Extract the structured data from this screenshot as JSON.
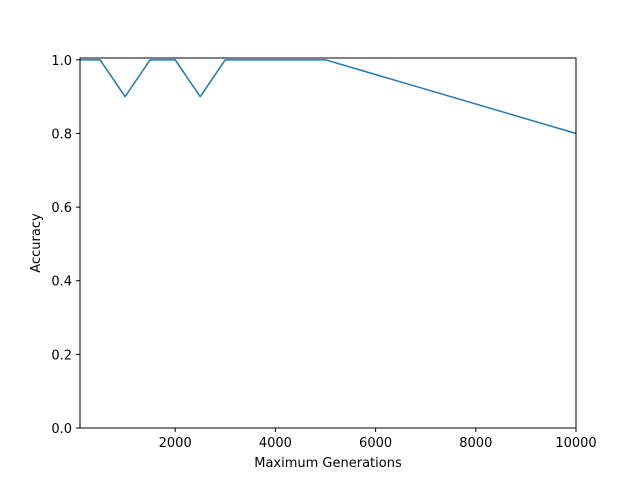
{
  "chart_data": {
    "type": "line",
    "title": "",
    "xlabel": "Maximum Generations",
    "ylabel": "Accuracy",
    "xlim": [
      100,
      10000
    ],
    "ylim": [
      0,
      1.005
    ],
    "grid": false,
    "x_ticks": [
      2000,
      4000,
      6000,
      8000,
      10000
    ],
    "x_tick_labels": [
      "2000",
      "4000",
      "6000",
      "8000",
      "10000"
    ],
    "y_ticks": [
      0.0,
      0.2,
      0.4,
      0.6,
      0.8,
      1.0
    ],
    "y_tick_labels": [
      "0.0",
      "0.2",
      "0.4",
      "0.6",
      "0.8",
      "1.0"
    ],
    "series": [
      {
        "color": "#1f77b4",
        "x": [
          100,
          500,
          1000,
          1500,
          2000,
          2500,
          3000,
          4000,
          5000,
          10000
        ],
        "y": [
          1.0,
          1.0,
          0.9,
          1.0,
          1.0,
          0.9,
          1.0,
          1.0,
          1.0,
          0.8
        ]
      }
    ]
  }
}
